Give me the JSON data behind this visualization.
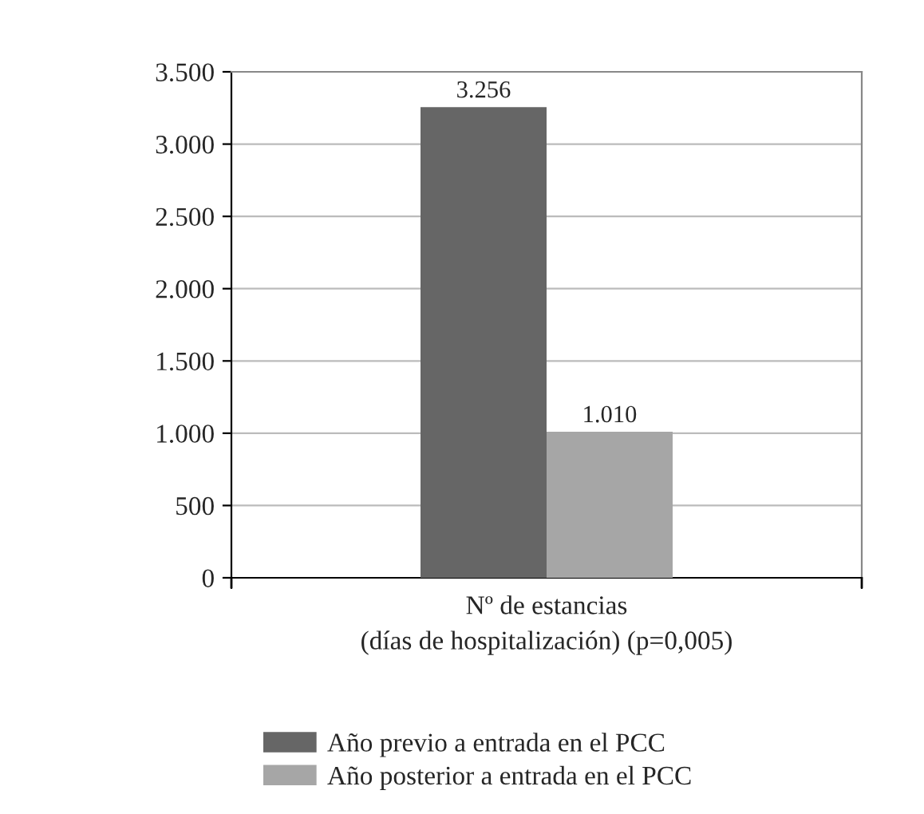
{
  "chart_data": {
    "type": "bar",
    "categories": [
      "Nº de estancias\n(días de hospitalización) (p=0,005)"
    ],
    "series": [
      {
        "name": "Año previo a entrada en el PCC",
        "color": "#666666",
        "values": [
          3256
        ],
        "value_labels": [
          "3.256"
        ]
      },
      {
        "name": "Año posterior a entrada en el PCC",
        "color": "#a6a6a6",
        "values": [
          1010
        ],
        "value_labels": [
          "1.010"
        ]
      }
    ],
    "ylim": [
      0,
      3500
    ],
    "yticks": [
      0,
      {
        "value": 500,
        "label": "500"
      },
      {
        "value": 1000,
        "label": "1.000"
      },
      {
        "value": 1500,
        "label": "1.500"
      },
      {
        "value": 2000,
        "label": "2.000"
      },
      {
        "value": 2500,
        "label": "2.500"
      },
      {
        "value": 3000,
        "label": "3.000"
      },
      {
        "value": 3500,
        "label": "3.500"
      }
    ],
    "grid": "y",
    "legend": "bottom"
  }
}
